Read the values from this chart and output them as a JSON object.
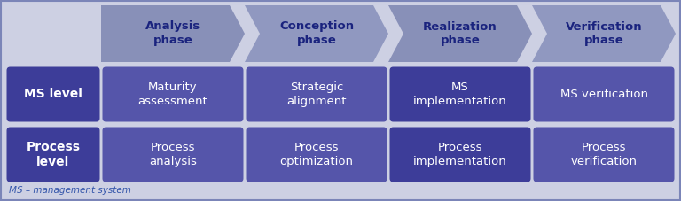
{
  "background_color": "#cdd0e3",
  "border_color": "#7b85b8",
  "arrow_color": "#8890b8",
  "arrow_color_alt": "#9098c0",
  "cell_dark": "#3d3d99",
  "cell_medium": "#5555aa",
  "cell_light": "#6666bb",
  "text_white": "#ffffff",
  "text_dark_navy": "#1a237e",
  "footnote_color": "#3355aa",
  "phases": [
    "Analysis\nphase",
    "Conception\nphase",
    "Realization\nphase",
    "Verification\nphase"
  ],
  "ms_row": [
    "Maturity\nassessment",
    "Strategic\nalignment",
    "MS\nimplementation",
    "MS verification"
  ],
  "process_row": [
    "Process\nanalysis",
    "Process\noptimization",
    "Process\nimplementation",
    "Process\nverification"
  ],
  "ms_row_bold": [
    false,
    false,
    false,
    false
  ],
  "process_row_bold": [
    false,
    false,
    false,
    false
  ],
  "footnote": "MS – management system",
  "figw": 7.68,
  "figh": 2.27,
  "dpi": 100
}
